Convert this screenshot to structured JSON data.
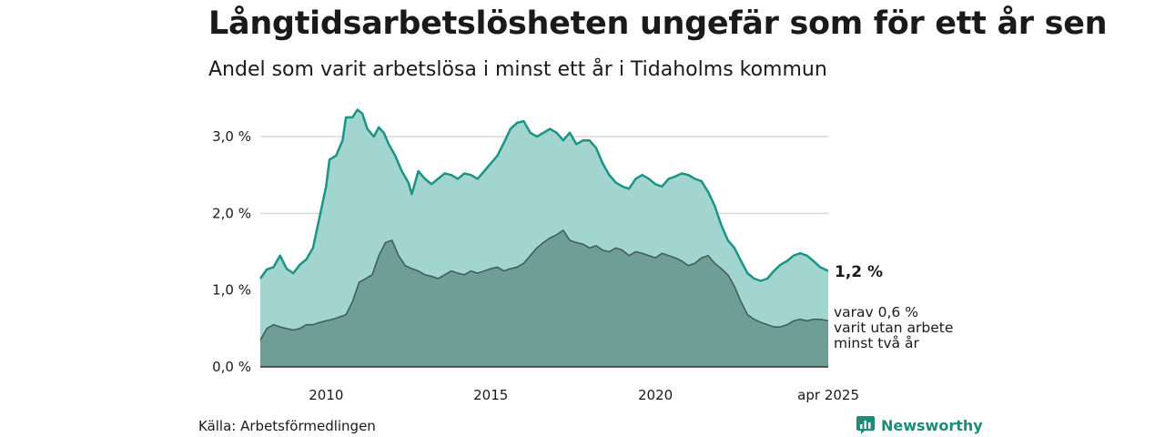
{
  "header": {
    "title": "Långtidsarbetslösheten ungefär som för ett år sen",
    "subtitle": "Andel som varit arbetslösa i minst ett år i Tidaholms kommun"
  },
  "footer": {
    "source": "Källa: Arbetsförmedlingen",
    "brand": "Newsworthy",
    "brand_icon": "bar-chart-icon"
  },
  "colors": {
    "total_fill": "#a3d5d0",
    "total_line": "#1a9484",
    "sub_fill": "#6f9e96",
    "sub_line": "#3d5a54",
    "grid": "#d9d9d9",
    "brand": "#1d8a7a"
  },
  "chart_data": {
    "type": "area",
    "xlim": [
      2008.0,
      2025.25
    ],
    "ylim": [
      0,
      3.4
    ],
    "y_ticks": [
      {
        "value": 0,
        "label": "0,0 %"
      },
      {
        "value": 1,
        "label": "1,0 %"
      },
      {
        "value": 2,
        "label": "2,0 %"
      },
      {
        "value": 3,
        "label": "3,0 %"
      }
    ],
    "x_ticks": [
      {
        "value": 2010,
        "label": "2010"
      },
      {
        "value": 2015,
        "label": "2015"
      },
      {
        "value": 2020,
        "label": "2020"
      },
      {
        "value": 2025.25,
        "label": "apr 2025"
      }
    ],
    "grid": true,
    "series": [
      {
        "key": "total",
        "end_label": "1,2 %",
        "points": [
          [
            2008.0,
            1.15
          ],
          [
            2008.2,
            1.27
          ],
          [
            2008.4,
            1.3
          ],
          [
            2008.6,
            1.45
          ],
          [
            2008.8,
            1.28
          ],
          [
            2009.0,
            1.22
          ],
          [
            2009.2,
            1.33
          ],
          [
            2009.4,
            1.4
          ],
          [
            2009.6,
            1.55
          ],
          [
            2009.8,
            1.95
          ],
          [
            2010.0,
            2.35
          ],
          [
            2010.1,
            2.7
          ],
          [
            2010.3,
            2.75
          ],
          [
            2010.5,
            2.95
          ],
          [
            2010.6,
            3.25
          ],
          [
            2010.8,
            3.25
          ],
          [
            2010.95,
            3.35
          ],
          [
            2011.1,
            3.3
          ],
          [
            2011.25,
            3.1
          ],
          [
            2011.45,
            3.0
          ],
          [
            2011.6,
            3.12
          ],
          [
            2011.75,
            3.05
          ],
          [
            2011.9,
            2.9
          ],
          [
            2012.1,
            2.75
          ],
          [
            2012.3,
            2.55
          ],
          [
            2012.5,
            2.4
          ],
          [
            2012.6,
            2.25
          ],
          [
            2012.8,
            2.55
          ],
          [
            2013.0,
            2.45
          ],
          [
            2013.2,
            2.38
          ],
          [
            2013.4,
            2.45
          ],
          [
            2013.6,
            2.52
          ],
          [
            2013.8,
            2.5
          ],
          [
            2014.0,
            2.45
          ],
          [
            2014.2,
            2.52
          ],
          [
            2014.4,
            2.5
          ],
          [
            2014.6,
            2.45
          ],
          [
            2014.8,
            2.55
          ],
          [
            2015.0,
            2.65
          ],
          [
            2015.2,
            2.75
          ],
          [
            2015.4,
            2.92
          ],
          [
            2015.6,
            3.1
          ],
          [
            2015.8,
            3.18
          ],
          [
            2016.0,
            3.2
          ],
          [
            2016.2,
            3.05
          ],
          [
            2016.4,
            3.0
          ],
          [
            2016.6,
            3.05
          ],
          [
            2016.8,
            3.1
          ],
          [
            2017.0,
            3.05
          ],
          [
            2017.2,
            2.95
          ],
          [
            2017.4,
            3.05
          ],
          [
            2017.6,
            2.9
          ],
          [
            2017.8,
            2.95
          ],
          [
            2018.0,
            2.95
          ],
          [
            2018.2,
            2.85
          ],
          [
            2018.4,
            2.65
          ],
          [
            2018.6,
            2.5
          ],
          [
            2018.8,
            2.4
          ],
          [
            2019.0,
            2.35
          ],
          [
            2019.2,
            2.32
          ],
          [
            2019.4,
            2.45
          ],
          [
            2019.6,
            2.5
          ],
          [
            2019.8,
            2.45
          ],
          [
            2020.0,
            2.38
          ],
          [
            2020.2,
            2.35
          ],
          [
            2020.4,
            2.45
          ],
          [
            2020.6,
            2.48
          ],
          [
            2020.8,
            2.52
          ],
          [
            2021.0,
            2.5
          ],
          [
            2021.2,
            2.45
          ],
          [
            2021.4,
            2.42
          ],
          [
            2021.6,
            2.28
          ],
          [
            2021.8,
            2.1
          ],
          [
            2022.0,
            1.85
          ],
          [
            2022.2,
            1.65
          ],
          [
            2022.4,
            1.55
          ],
          [
            2022.6,
            1.38
          ],
          [
            2022.8,
            1.22
          ],
          [
            2023.0,
            1.15
          ],
          [
            2023.2,
            1.12
          ],
          [
            2023.4,
            1.15
          ],
          [
            2023.6,
            1.25
          ],
          [
            2023.8,
            1.33
          ],
          [
            2024.0,
            1.38
          ],
          [
            2024.2,
            1.45
          ],
          [
            2024.4,
            1.48
          ],
          [
            2024.6,
            1.45
          ],
          [
            2024.8,
            1.38
          ],
          [
            2025.0,
            1.3
          ],
          [
            2025.25,
            1.25
          ]
        ]
      },
      {
        "key": "two_years",
        "end_label": [
          "varav 0,6 %",
          "varit utan arbete",
          "minst två år"
        ],
        "points": [
          [
            2008.0,
            0.35
          ],
          [
            2008.2,
            0.5
          ],
          [
            2008.4,
            0.55
          ],
          [
            2008.6,
            0.52
          ],
          [
            2008.8,
            0.5
          ],
          [
            2009.0,
            0.48
          ],
          [
            2009.2,
            0.5
          ],
          [
            2009.4,
            0.55
          ],
          [
            2009.6,
            0.55
          ],
          [
            2009.8,
            0.58
          ],
          [
            2010.0,
            0.6
          ],
          [
            2010.2,
            0.62
          ],
          [
            2010.4,
            0.65
          ],
          [
            2010.6,
            0.68
          ],
          [
            2010.8,
            0.85
          ],
          [
            2011.0,
            1.1
          ],
          [
            2011.2,
            1.15
          ],
          [
            2011.4,
            1.2
          ],
          [
            2011.6,
            1.45
          ],
          [
            2011.8,
            1.62
          ],
          [
            2012.0,
            1.65
          ],
          [
            2012.2,
            1.45
          ],
          [
            2012.4,
            1.32
          ],
          [
            2012.6,
            1.28
          ],
          [
            2012.8,
            1.25
          ],
          [
            2013.0,
            1.2
          ],
          [
            2013.2,
            1.18
          ],
          [
            2013.4,
            1.15
          ],
          [
            2013.6,
            1.2
          ],
          [
            2013.8,
            1.25
          ],
          [
            2014.0,
            1.22
          ],
          [
            2014.2,
            1.2
          ],
          [
            2014.4,
            1.25
          ],
          [
            2014.6,
            1.22
          ],
          [
            2014.8,
            1.25
          ],
          [
            2015.0,
            1.28
          ],
          [
            2015.2,
            1.3
          ],
          [
            2015.4,
            1.25
          ],
          [
            2015.6,
            1.28
          ],
          [
            2015.8,
            1.3
          ],
          [
            2016.0,
            1.35
          ],
          [
            2016.2,
            1.45
          ],
          [
            2016.4,
            1.55
          ],
          [
            2016.6,
            1.62
          ],
          [
            2016.8,
            1.68
          ],
          [
            2017.0,
            1.72
          ],
          [
            2017.2,
            1.78
          ],
          [
            2017.4,
            1.65
          ],
          [
            2017.6,
            1.62
          ],
          [
            2017.8,
            1.6
          ],
          [
            2018.0,
            1.55
          ],
          [
            2018.2,
            1.58
          ],
          [
            2018.4,
            1.52
          ],
          [
            2018.6,
            1.5
          ],
          [
            2018.8,
            1.55
          ],
          [
            2019.0,
            1.52
          ],
          [
            2019.2,
            1.45
          ],
          [
            2019.4,
            1.5
          ],
          [
            2019.6,
            1.48
          ],
          [
            2019.8,
            1.45
          ],
          [
            2020.0,
            1.42
          ],
          [
            2020.2,
            1.48
          ],
          [
            2020.4,
            1.45
          ],
          [
            2020.6,
            1.42
          ],
          [
            2020.8,
            1.38
          ],
          [
            2021.0,
            1.32
          ],
          [
            2021.2,
            1.35
          ],
          [
            2021.4,
            1.42
          ],
          [
            2021.6,
            1.45
          ],
          [
            2021.8,
            1.35
          ],
          [
            2022.0,
            1.28
          ],
          [
            2022.2,
            1.2
          ],
          [
            2022.4,
            1.05
          ],
          [
            2022.6,
            0.85
          ],
          [
            2022.8,
            0.68
          ],
          [
            2023.0,
            0.62
          ],
          [
            2023.2,
            0.58
          ],
          [
            2023.4,
            0.55
          ],
          [
            2023.6,
            0.52
          ],
          [
            2023.8,
            0.52
          ],
          [
            2024.0,
            0.55
          ],
          [
            2024.2,
            0.6
          ],
          [
            2024.4,
            0.62
          ],
          [
            2024.6,
            0.6
          ],
          [
            2024.8,
            0.62
          ],
          [
            2025.0,
            0.62
          ],
          [
            2025.25,
            0.6
          ]
        ]
      }
    ]
  }
}
